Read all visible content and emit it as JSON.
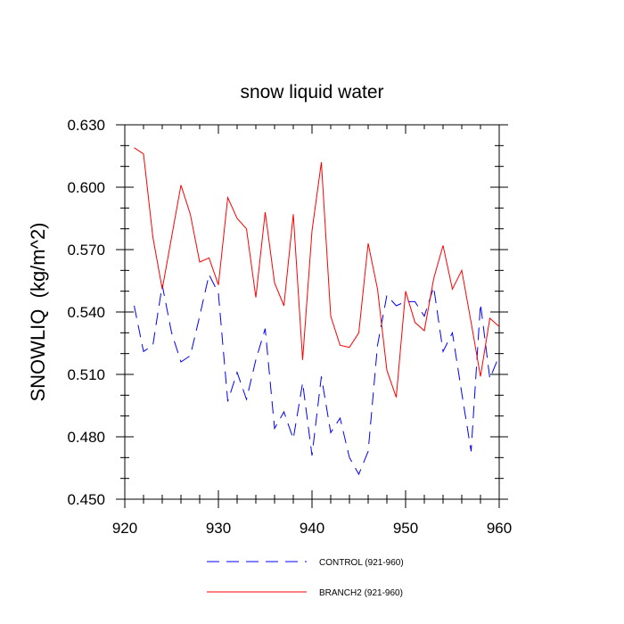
{
  "chart_data": {
    "type": "line",
    "title": "snow liquid water",
    "xlabel": "",
    "ylabel": "SNOWLIQ  (kg/m^2)",
    "xlim": [
      920,
      960
    ],
    "ylim": [
      0.45,
      0.63
    ],
    "x_ticks": [
      920,
      930,
      940,
      950,
      960
    ],
    "x_tick_labels": [
      "920",
      "930",
      "940",
      "950",
      "960"
    ],
    "y_ticks": [
      0.45,
      0.48,
      0.51,
      0.54,
      0.57,
      0.6,
      0.63
    ],
    "y_tick_labels": [
      "0.450",
      "0.480",
      "0.510",
      "0.540",
      "0.570",
      "0.600",
      "0.630"
    ],
    "legend_position": "bottom",
    "series": [
      {
        "name": "CONTROL (921-960)",
        "color": "#0000ff",
        "style": "dashed",
        "x": [
          921,
          922,
          923,
          924,
          925,
          926,
          927,
          928,
          929,
          930,
          931,
          932,
          933,
          934,
          935,
          936,
          937,
          938,
          939,
          940,
          941,
          942,
          943,
          944,
          945,
          946,
          947,
          948,
          949,
          950,
          951,
          952,
          953,
          954,
          955,
          956,
          957,
          958,
          959,
          960
        ],
        "values": [
          0.543,
          0.521,
          0.524,
          0.553,
          0.53,
          0.516,
          0.519,
          0.538,
          0.558,
          0.549,
          0.497,
          0.511,
          0.498,
          0.517,
          0.532,
          0.484,
          0.492,
          0.479,
          0.506,
          0.471,
          0.509,
          0.482,
          0.489,
          0.47,
          0.462,
          0.473,
          0.524,
          0.548,
          0.543,
          0.545,
          0.545,
          0.538,
          0.552,
          0.521,
          0.53,
          0.501,
          0.473,
          0.544,
          0.508,
          0.519
        ]
      },
      {
        "name": "BRANCH2 (921-960)",
        "color": "#ff0000",
        "style": "solid",
        "x": [
          921,
          922,
          923,
          924,
          925,
          926,
          927,
          928,
          929,
          930,
          931,
          932,
          933,
          934,
          935,
          936,
          937,
          938,
          939,
          940,
          941,
          942,
          943,
          944,
          945,
          946,
          947,
          948,
          949,
          950,
          951,
          952,
          953,
          954,
          955,
          956,
          957,
          958,
          959,
          960
        ],
        "values": [
          0.619,
          0.616,
          0.576,
          0.551,
          0.576,
          0.601,
          0.587,
          0.564,
          0.566,
          0.553,
          0.595,
          0.585,
          0.58,
          0.547,
          0.588,
          0.554,
          0.543,
          0.587,
          0.517,
          0.579,
          0.612,
          0.538,
          0.524,
          0.523,
          0.53,
          0.573,
          0.551,
          0.512,
          0.499,
          0.55,
          0.535,
          0.531,
          0.556,
          0.572,
          0.551,
          0.56,
          0.535,
          0.509,
          0.537,
          0.533
        ]
      }
    ]
  }
}
